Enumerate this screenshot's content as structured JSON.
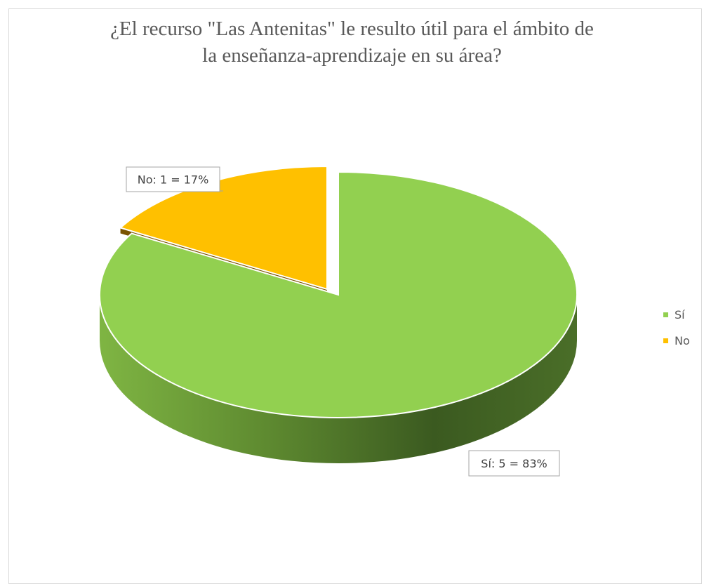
{
  "chart_data": {
    "type": "pie",
    "title_lines": [
      "¿El recurso \"Las Antenitas\" le resulto útil para el ámbito de",
      "la enseñanza-aprendizaje en su área?"
    ],
    "categories": [
      "Sí",
      "No"
    ],
    "values": [
      5,
      1
    ],
    "percentages": [
      "83%",
      "17%"
    ],
    "data_labels": [
      "Sí: 5 = 83%",
      "No: 1 = 17%"
    ],
    "colors": [
      "#92d050",
      "#ffc000"
    ],
    "legend_position": "right",
    "style": "3d-exploded"
  }
}
